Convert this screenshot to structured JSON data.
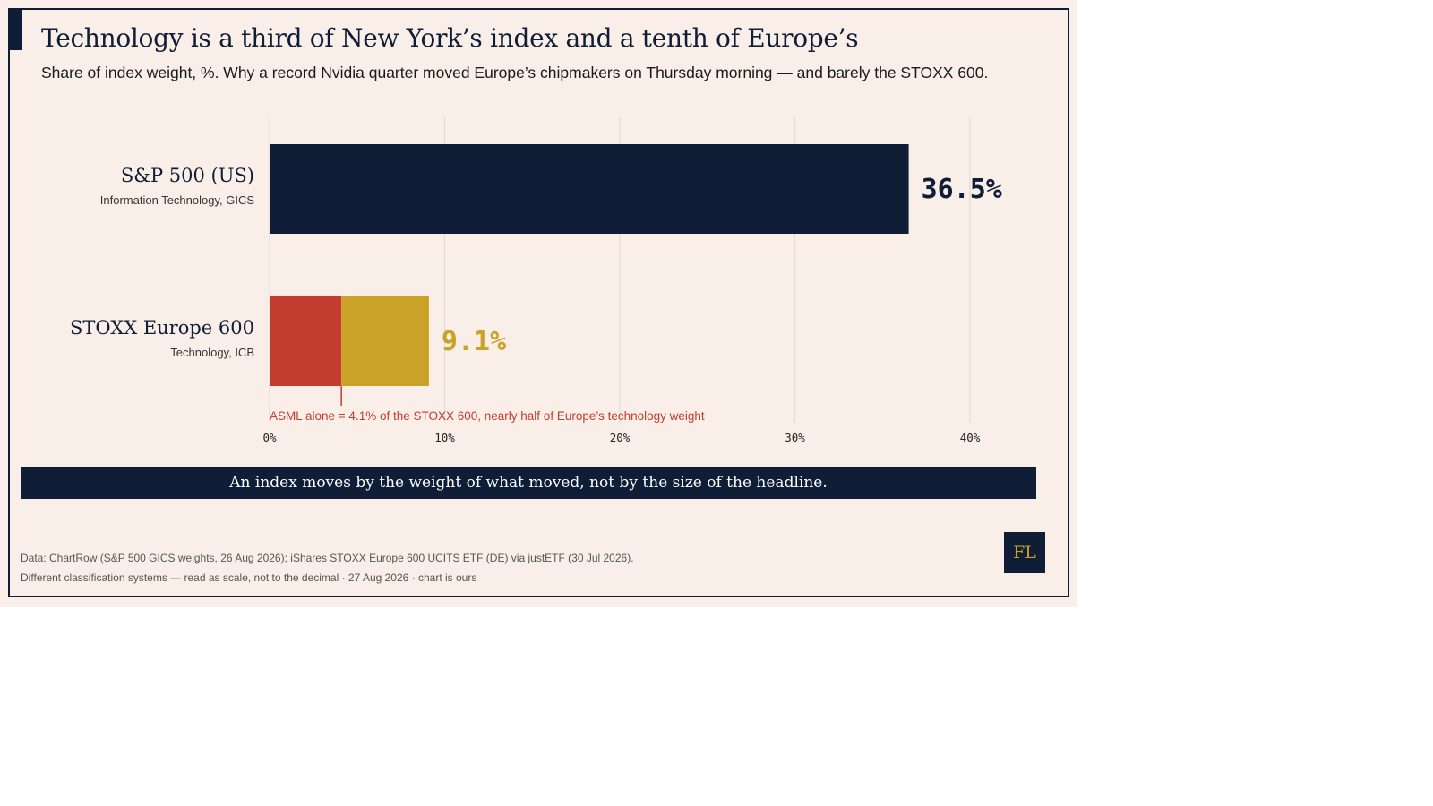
{
  "title": "Technology is a third of New York’s index and a tenth of Europe’s",
  "subtitle": "Share of index weight, %. Why a record Nvidia quarter moved Europe’s chipmakers on Thursday morning — and barely the STOXX 600.",
  "banner": "An index moves by the weight of what moved, not by the size of the headline.",
  "source_line": "Data: ChartRow (S&P 500 GICS weights, 26 Aug 2026); iShares STOXX Europe 600 UCITS ETF (DE) via justETF (30 Jul 2026).",
  "note_line": "Different classification systems — read as scale, not to the decimal · 27 Aug 2026 · chart is ours",
  "logo": "FL",
  "colors": {
    "navy": "#0f1e36",
    "red": "#c43c2f",
    "gold": "#c9a227",
    "grid": "#e3dcd5",
    "background": "#faefe8"
  },
  "chart_data": {
    "type": "bar",
    "orientation": "horizontal",
    "unit": "%",
    "xlim": [
      0,
      40
    ],
    "xticks": [
      0,
      10,
      20,
      30,
      40
    ],
    "xtick_labels": [
      "0%",
      "10%",
      "20%",
      "30%",
      "40%"
    ],
    "grid": "vertical",
    "categories": [
      {
        "name": "S&P 500 (US)",
        "sublabel": "Information Technology, GICS",
        "value": 36.5,
        "value_label": "36.5%",
        "color": "#0f1e36"
      },
      {
        "name": "STOXX Europe 600",
        "sublabel": "Technology, ICB",
        "value": 9.1,
        "value_label": "9.1%",
        "color": "#c9a227",
        "highlight_segment": {
          "value": 4.1,
          "color": "#c43c2f"
        }
      }
    ],
    "annotation": {
      "text": "ASML alone = 4.1% of the STOXX 600, nearly half of Europe’s technology weight",
      "at": 4.1,
      "color": "#c43c2f"
    }
  }
}
